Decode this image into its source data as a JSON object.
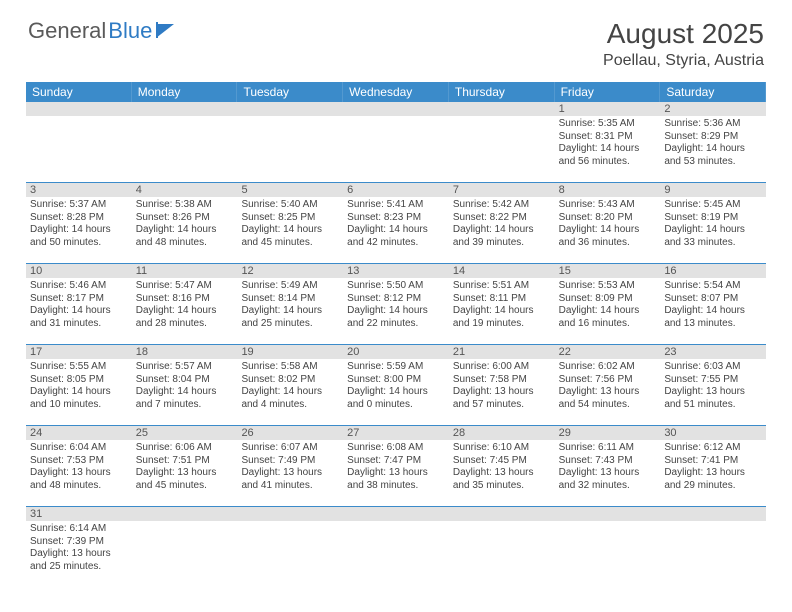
{
  "logo": {
    "general": "General",
    "blue": "Blue"
  },
  "title": "August 2025",
  "location": "Poellau, Styria, Austria",
  "colors": {
    "header_bg": "#3b8bca",
    "header_text": "#ffffff",
    "daynum_bg": "#e2e2e2",
    "text": "#444444",
    "rule": "#3b8bca"
  },
  "days_of_week": [
    "Sunday",
    "Monday",
    "Tuesday",
    "Wednesday",
    "Thursday",
    "Friday",
    "Saturday"
  ],
  "weeks": [
    {
      "nums": [
        "",
        "",
        "",
        "",
        "",
        "1",
        "2"
      ],
      "cells": [
        {
          "sr": "",
          "ss": "",
          "dl1": "",
          "dl2": ""
        },
        {
          "sr": "",
          "ss": "",
          "dl1": "",
          "dl2": ""
        },
        {
          "sr": "",
          "ss": "",
          "dl1": "",
          "dl2": ""
        },
        {
          "sr": "",
          "ss": "",
          "dl1": "",
          "dl2": ""
        },
        {
          "sr": "",
          "ss": "",
          "dl1": "",
          "dl2": ""
        },
        {
          "sr": "Sunrise: 5:35 AM",
          "ss": "Sunset: 8:31 PM",
          "dl1": "Daylight: 14 hours",
          "dl2": "and 56 minutes."
        },
        {
          "sr": "Sunrise: 5:36 AM",
          "ss": "Sunset: 8:29 PM",
          "dl1": "Daylight: 14 hours",
          "dl2": "and 53 minutes."
        }
      ]
    },
    {
      "nums": [
        "3",
        "4",
        "5",
        "6",
        "7",
        "8",
        "9"
      ],
      "cells": [
        {
          "sr": "Sunrise: 5:37 AM",
          "ss": "Sunset: 8:28 PM",
          "dl1": "Daylight: 14 hours",
          "dl2": "and 50 minutes."
        },
        {
          "sr": "Sunrise: 5:38 AM",
          "ss": "Sunset: 8:26 PM",
          "dl1": "Daylight: 14 hours",
          "dl2": "and 48 minutes."
        },
        {
          "sr": "Sunrise: 5:40 AM",
          "ss": "Sunset: 8:25 PM",
          "dl1": "Daylight: 14 hours",
          "dl2": "and 45 minutes."
        },
        {
          "sr": "Sunrise: 5:41 AM",
          "ss": "Sunset: 8:23 PM",
          "dl1": "Daylight: 14 hours",
          "dl2": "and 42 minutes."
        },
        {
          "sr": "Sunrise: 5:42 AM",
          "ss": "Sunset: 8:22 PM",
          "dl1": "Daylight: 14 hours",
          "dl2": "and 39 minutes."
        },
        {
          "sr": "Sunrise: 5:43 AM",
          "ss": "Sunset: 8:20 PM",
          "dl1": "Daylight: 14 hours",
          "dl2": "and 36 minutes."
        },
        {
          "sr": "Sunrise: 5:45 AM",
          "ss": "Sunset: 8:19 PM",
          "dl1": "Daylight: 14 hours",
          "dl2": "and 33 minutes."
        }
      ]
    },
    {
      "nums": [
        "10",
        "11",
        "12",
        "13",
        "14",
        "15",
        "16"
      ],
      "cells": [
        {
          "sr": "Sunrise: 5:46 AM",
          "ss": "Sunset: 8:17 PM",
          "dl1": "Daylight: 14 hours",
          "dl2": "and 31 minutes."
        },
        {
          "sr": "Sunrise: 5:47 AM",
          "ss": "Sunset: 8:16 PM",
          "dl1": "Daylight: 14 hours",
          "dl2": "and 28 minutes."
        },
        {
          "sr": "Sunrise: 5:49 AM",
          "ss": "Sunset: 8:14 PM",
          "dl1": "Daylight: 14 hours",
          "dl2": "and 25 minutes."
        },
        {
          "sr": "Sunrise: 5:50 AM",
          "ss": "Sunset: 8:12 PM",
          "dl1": "Daylight: 14 hours",
          "dl2": "and 22 minutes."
        },
        {
          "sr": "Sunrise: 5:51 AM",
          "ss": "Sunset: 8:11 PM",
          "dl1": "Daylight: 14 hours",
          "dl2": "and 19 minutes."
        },
        {
          "sr": "Sunrise: 5:53 AM",
          "ss": "Sunset: 8:09 PM",
          "dl1": "Daylight: 14 hours",
          "dl2": "and 16 minutes."
        },
        {
          "sr": "Sunrise: 5:54 AM",
          "ss": "Sunset: 8:07 PM",
          "dl1": "Daylight: 14 hours",
          "dl2": "and 13 minutes."
        }
      ]
    },
    {
      "nums": [
        "17",
        "18",
        "19",
        "20",
        "21",
        "22",
        "23"
      ],
      "cells": [
        {
          "sr": "Sunrise: 5:55 AM",
          "ss": "Sunset: 8:05 PM",
          "dl1": "Daylight: 14 hours",
          "dl2": "and 10 minutes."
        },
        {
          "sr": "Sunrise: 5:57 AM",
          "ss": "Sunset: 8:04 PM",
          "dl1": "Daylight: 14 hours",
          "dl2": "and 7 minutes."
        },
        {
          "sr": "Sunrise: 5:58 AM",
          "ss": "Sunset: 8:02 PM",
          "dl1": "Daylight: 14 hours",
          "dl2": "and 4 minutes."
        },
        {
          "sr": "Sunrise: 5:59 AM",
          "ss": "Sunset: 8:00 PM",
          "dl1": "Daylight: 14 hours",
          "dl2": "and 0 minutes."
        },
        {
          "sr": "Sunrise: 6:00 AM",
          "ss": "Sunset: 7:58 PM",
          "dl1": "Daylight: 13 hours",
          "dl2": "and 57 minutes."
        },
        {
          "sr": "Sunrise: 6:02 AM",
          "ss": "Sunset: 7:56 PM",
          "dl1": "Daylight: 13 hours",
          "dl2": "and 54 minutes."
        },
        {
          "sr": "Sunrise: 6:03 AM",
          "ss": "Sunset: 7:55 PM",
          "dl1": "Daylight: 13 hours",
          "dl2": "and 51 minutes."
        }
      ]
    },
    {
      "nums": [
        "24",
        "25",
        "26",
        "27",
        "28",
        "29",
        "30"
      ],
      "cells": [
        {
          "sr": "Sunrise: 6:04 AM",
          "ss": "Sunset: 7:53 PM",
          "dl1": "Daylight: 13 hours",
          "dl2": "and 48 minutes."
        },
        {
          "sr": "Sunrise: 6:06 AM",
          "ss": "Sunset: 7:51 PM",
          "dl1": "Daylight: 13 hours",
          "dl2": "and 45 minutes."
        },
        {
          "sr": "Sunrise: 6:07 AM",
          "ss": "Sunset: 7:49 PM",
          "dl1": "Daylight: 13 hours",
          "dl2": "and 41 minutes."
        },
        {
          "sr": "Sunrise: 6:08 AM",
          "ss": "Sunset: 7:47 PM",
          "dl1": "Daylight: 13 hours",
          "dl2": "and 38 minutes."
        },
        {
          "sr": "Sunrise: 6:10 AM",
          "ss": "Sunset: 7:45 PM",
          "dl1": "Daylight: 13 hours",
          "dl2": "and 35 minutes."
        },
        {
          "sr": "Sunrise: 6:11 AM",
          "ss": "Sunset: 7:43 PM",
          "dl1": "Daylight: 13 hours",
          "dl2": "and 32 minutes."
        },
        {
          "sr": "Sunrise: 6:12 AM",
          "ss": "Sunset: 7:41 PM",
          "dl1": "Daylight: 13 hours",
          "dl2": "and 29 minutes."
        }
      ]
    },
    {
      "nums": [
        "31",
        "",
        "",
        "",
        "",
        "",
        ""
      ],
      "cells": [
        {
          "sr": "Sunrise: 6:14 AM",
          "ss": "Sunset: 7:39 PM",
          "dl1": "Daylight: 13 hours",
          "dl2": "and 25 minutes."
        },
        {
          "sr": "",
          "ss": "",
          "dl1": "",
          "dl2": ""
        },
        {
          "sr": "",
          "ss": "",
          "dl1": "",
          "dl2": ""
        },
        {
          "sr": "",
          "ss": "",
          "dl1": "",
          "dl2": ""
        },
        {
          "sr": "",
          "ss": "",
          "dl1": "",
          "dl2": ""
        },
        {
          "sr": "",
          "ss": "",
          "dl1": "",
          "dl2": ""
        },
        {
          "sr": "",
          "ss": "",
          "dl1": "",
          "dl2": ""
        }
      ]
    }
  ]
}
